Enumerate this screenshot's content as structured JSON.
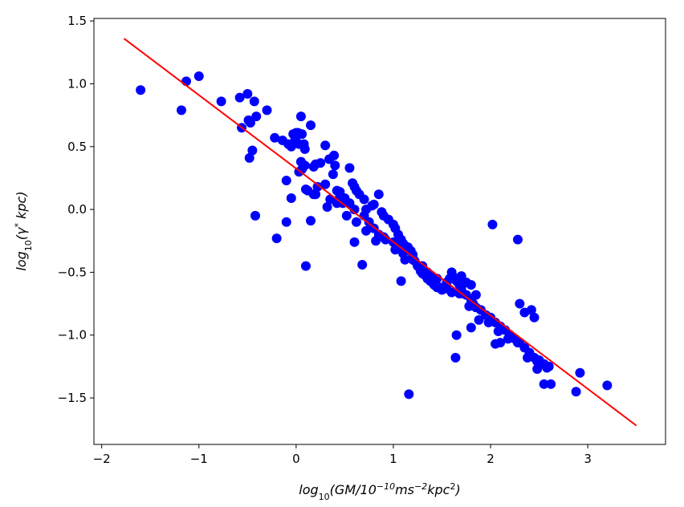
{
  "chart_data": {
    "type": "scatter",
    "title": "",
    "xlabel_main": "log",
    "xlabel_sub": "10",
    "xlabel_rest": "(GM/10",
    "xlabel_sup1": "−10",
    "xlabel_rest2": "ms",
    "xlabel_sup2": "−2",
    "xlabel_rest3": "kpc",
    "xlabel_sup3": "2",
    "xlabel_close": ")",
    "ylabel_main": "log",
    "ylabel_sub": "10",
    "ylabel_rest": "(γ",
    "ylabel_sup": "*",
    "ylabel_rest2": " kpc)",
    "xlim": [
      -2.08,
      3.8
    ],
    "ylim": [
      -1.87,
      1.52
    ],
    "xticks": [
      -2,
      -1,
      0,
      1,
      2,
      3
    ],
    "xtick_labels": [
      "−2",
      "−1",
      "0",
      "1",
      "2",
      "3"
    ],
    "yticks": [
      -1.5,
      -1.0,
      -0.5,
      0.0,
      0.5,
      1.0,
      1.5
    ],
    "ytick_labels": [
      "−1.5",
      "−1.0",
      "−0.5",
      "0.0",
      "0.5",
      "1.0",
      "1.5"
    ],
    "colors": {
      "points": "#0000ff",
      "fit_line": "#ff0000"
    },
    "series": [
      {
        "kind": "points",
        "x": [
          -1.6,
          -1.18,
          -1.13,
          -1.0,
          -0.77,
          -0.58,
          -0.5,
          -0.47,
          -0.43,
          -0.3,
          -0.56,
          -0.48,
          -0.45,
          -0.49,
          -0.41,
          -0.22,
          -0.14,
          -0.08,
          -0.03,
          0.0,
          0.03,
          0.05,
          0.06,
          0.09,
          -0.01,
          0.03,
          0.06,
          0.09,
          0.15,
          0.18,
          0.2,
          0.25,
          0.3,
          0.34,
          0.38,
          0.39,
          0.4,
          0.42,
          0.45,
          0.48,
          0.5,
          0.55,
          0.58,
          0.6,
          0.62,
          0.65,
          0.7,
          0.72,
          0.78,
          0.8,
          0.85,
          0.88,
          0.9,
          0.95,
          1.0,
          1.02,
          1.05,
          1.08,
          1.1,
          1.12,
          1.15,
          1.18,
          1.2,
          1.22,
          1.25,
          1.28,
          1.3,
          1.32,
          1.35,
          1.38,
          1.4,
          1.42,
          1.45,
          1.5,
          1.55,
          1.6,
          1.62,
          1.65,
          1.68,
          1.7,
          1.72,
          1.75,
          1.8,
          1.82,
          1.85,
          1.9,
          1.95,
          2.0,
          2.05,
          2.1,
          2.15,
          2.2,
          2.25,
          2.3,
          2.35,
          2.4,
          2.45,
          2.5,
          2.55,
          2.6,
          0.05,
          0.1,
          0.2,
          0.3,
          0.35,
          0.45,
          0.55,
          0.6,
          0.7,
          0.75,
          0.8,
          0.85,
          0.9,
          1.0,
          1.05,
          1.1,
          1.2,
          1.3,
          1.35,
          1.45,
          1.55,
          1.6,
          1.7,
          1.75,
          1.8,
          1.85,
          0.12,
          0.18,
          0.22,
          0.32,
          0.42,
          0.52,
          0.62,
          0.72,
          0.82,
          0.92,
          1.02,
          1.12,
          1.28,
          1.38,
          1.48,
          1.58,
          1.68,
          1.78,
          1.88,
          1.98,
          2.08,
          2.18,
          2.28,
          2.38,
          2.48,
          2.58,
          -0.1,
          -0.05,
          0.0,
          0.02,
          0.08,
          -0.42,
          -0.2,
          -0.1,
          -0.05,
          0.1,
          0.15,
          0.6,
          0.68,
          1.08,
          1.16,
          1.65,
          1.64,
          2.02,
          2.28,
          2.48,
          2.55,
          2.62,
          2.88,
          2.92,
          3.2,
          2.0,
          2.05,
          2.1,
          2.3,
          2.35,
          2.42,
          2.45,
          1.8
        ],
        "y": [
          0.95,
          0.79,
          1.02,
          1.06,
          0.86,
          0.89,
          0.92,
          0.69,
          0.86,
          0.79,
          0.65,
          0.41,
          0.47,
          0.71,
          0.74,
          0.57,
          0.55,
          0.52,
          0.6,
          0.61,
          0.52,
          0.74,
          0.6,
          0.48,
          0.56,
          0.3,
          0.32,
          0.35,
          0.67,
          0.34,
          0.36,
          0.37,
          0.51,
          0.4,
          0.28,
          0.43,
          0.35,
          0.15,
          0.14,
          0.05,
          0.09,
          0.33,
          0.21,
          0.18,
          0.15,
          0.12,
          0.08,
          0.0,
          0.03,
          0.04,
          0.12,
          -0.02,
          -0.05,
          -0.08,
          -0.12,
          -0.15,
          -0.2,
          -0.24,
          -0.27,
          -0.29,
          -0.3,
          -0.33,
          -0.36,
          -0.41,
          -0.45,
          -0.49,
          -0.51,
          -0.52,
          -0.55,
          -0.57,
          -0.58,
          -0.6,
          -0.62,
          -0.64,
          -0.63,
          -0.66,
          -0.54,
          -0.57,
          -0.6,
          -0.62,
          -0.67,
          -0.68,
          -0.72,
          -0.75,
          -0.78,
          -0.8,
          -0.84,
          -0.87,
          -0.9,
          -0.93,
          -0.96,
          -1.0,
          -1.03,
          -1.06,
          -1.1,
          -1.14,
          -1.18,
          -1.2,
          -1.23,
          -1.25,
          0.38,
          0.16,
          0.12,
          0.2,
          0.08,
          0.1,
          0.05,
          0.0,
          -0.05,
          -0.1,
          -0.15,
          -0.2,
          -0.22,
          -0.26,
          -0.3,
          -0.35,
          -0.4,
          -0.45,
          -0.5,
          -0.55,
          -0.58,
          -0.5,
          -0.53,
          -0.58,
          -0.6,
          -0.68,
          0.15,
          0.12,
          0.18,
          0.02,
          0.05,
          -0.05,
          -0.1,
          -0.17,
          -0.25,
          -0.24,
          -0.32,
          -0.4,
          -0.45,
          -0.53,
          -0.62,
          -0.55,
          -0.67,
          -0.77,
          -0.88,
          -0.9,
          -0.97,
          -1.03,
          -1.06,
          -1.18,
          -1.21,
          -1.26,
          0.23,
          0.5,
          0.58,
          0.61,
          0.52,
          -0.05,
          -0.23,
          -0.1,
          0.09,
          -0.45,
          -0.09,
          -0.26,
          -0.44,
          -0.57,
          -1.47,
          -1.0,
          -1.18,
          -0.12,
          -0.24,
          -1.27,
          -1.39,
          -1.39,
          -1.45,
          -1.3,
          -1.4,
          -0.86,
          -1.07,
          -1.06,
          -0.75,
          -0.82,
          -0.8,
          -0.86,
          -0.94
        ],
        "color": "#0000ff"
      },
      {
        "kind": "line",
        "x": [
          -1.77,
          3.5
        ],
        "y": [
          1.36,
          -1.72
        ],
        "color": "#ff0000"
      }
    ]
  }
}
